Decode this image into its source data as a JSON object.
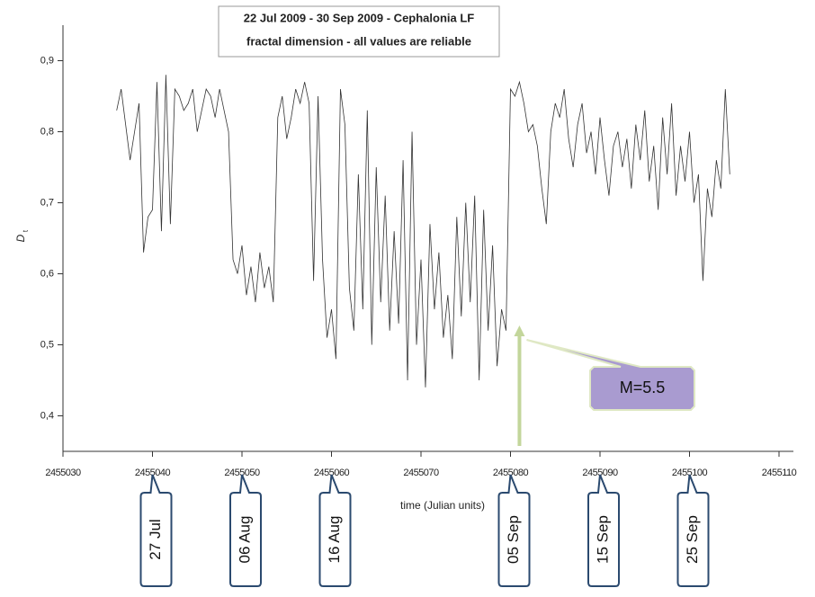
{
  "chart_data": {
    "type": "line",
    "title_lines": [
      "22 Jul 2009 - 30 Sep 2009 - Cephalonia LF",
      "fractal dimension - all values are reliable"
    ],
    "x_label": "time (Julian units)",
    "y_label": "D",
    "y_label_sub": "t",
    "xlim": [
      2455030,
      2455112
    ],
    "ylim": [
      0.35,
      0.95
    ],
    "xticks": [
      2455030,
      2455040,
      2455050,
      2455060,
      2455070,
      2455080,
      2455090,
      2455100,
      2455110
    ],
    "yticks": [
      {
        "value": 0.4,
        "label": "0,4"
      },
      {
        "value": 0.5,
        "label": "0,5"
      },
      {
        "value": 0.6,
        "label": "0,6"
      },
      {
        "value": 0.7,
        "label": "0,7"
      },
      {
        "value": 0.8,
        "label": "0,8"
      },
      {
        "value": 0.9,
        "label": "0,9"
      }
    ],
    "color": "#333333",
    "x": [
      2455036.0,
      2455036.5,
      2455037.0,
      2455037.5,
      2455038.0,
      2455038.5,
      2455039.0,
      2455039.5,
      2455040.0,
      2455040.5,
      2455041.0,
      2455041.5,
      2455042.0,
      2455042.5,
      2455043.0,
      2455043.5,
      2455044.0,
      2455044.5,
      2455045.0,
      2455045.5,
      2455046.0,
      2455046.5,
      2455047.0,
      2455047.5,
      2455048.0,
      2455048.5,
      2455049.0,
      2455049.5,
      2455050.0,
      2455050.5,
      2455051.0,
      2455051.5,
      2455052.0,
      2455052.5,
      2455053.0,
      2455053.5,
      2455054.0,
      2455054.5,
      2455055.0,
      2455055.5,
      2455056.0,
      2455056.5,
      2455057.0,
      2455057.5,
      2455058.0,
      2455058.5,
      2455059.0,
      2455059.5,
      2455060.0,
      2455060.5,
      2455061.0,
      2455061.5,
      2455062.0,
      2455062.5,
      2455063.0,
      2455063.5,
      2455064.0,
      2455064.5,
      2455065.0,
      2455065.5,
      2455066.0,
      2455066.5,
      2455067.0,
      2455067.5,
      2455068.0,
      2455068.5,
      2455069.0,
      2455069.5,
      2455070.0,
      2455070.5,
      2455071.0,
      2455071.5,
      2455072.0,
      2455072.5,
      2455073.0,
      2455073.5,
      2455074.0,
      2455074.5,
      2455075.0,
      2455075.5,
      2455076.0,
      2455076.5,
      2455077.0,
      2455077.5,
      2455078.0,
      2455078.5,
      2455079.0,
      2455079.5,
      2455080.0,
      2455080.5,
      2455081.0,
      2455081.5,
      2455082.0,
      2455082.5,
      2455083.0,
      2455083.5,
      2455084.0,
      2455084.5,
      2455085.0,
      2455085.5,
      2455086.0,
      2455086.5,
      2455087.0,
      2455087.5,
      2455088.0,
      2455088.5,
      2455089.0,
      2455089.5,
      2455090.0,
      2455090.5,
      2455091.0,
      2455091.5,
      2455092.0,
      2455092.5,
      2455093.0,
      2455093.5,
      2455094.0,
      2455094.5,
      2455095.0,
      2455095.5,
      2455096.0,
      2455096.5,
      2455097.0,
      2455097.5,
      2455098.0,
      2455098.5,
      2455099.0,
      2455099.5,
      2455100.0,
      2455100.5,
      2455101.0,
      2455101.5,
      2455102.0,
      2455102.5,
      2455103.0,
      2455103.5,
      2455104.0,
      2455104.5
    ],
    "values": [
      0.83,
      0.86,
      0.81,
      0.76,
      0.8,
      0.84,
      0.63,
      0.68,
      0.69,
      0.87,
      0.66,
      0.88,
      0.67,
      0.86,
      0.85,
      0.83,
      0.84,
      0.86,
      0.8,
      0.83,
      0.86,
      0.85,
      0.82,
      0.86,
      0.83,
      0.8,
      0.62,
      0.6,
      0.64,
      0.57,
      0.61,
      0.56,
      0.63,
      0.58,
      0.61,
      0.56,
      0.82,
      0.85,
      0.79,
      0.82,
      0.86,
      0.84,
      0.87,
      0.84,
      0.59,
      0.85,
      0.62,
      0.51,
      0.55,
      0.48,
      0.86,
      0.81,
      0.58,
      0.52,
      0.74,
      0.55,
      0.83,
      0.5,
      0.75,
      0.56,
      0.71,
      0.52,
      0.66,
      0.53,
      0.76,
      0.45,
      0.8,
      0.5,
      0.62,
      0.44,
      0.67,
      0.55,
      0.63,
      0.51,
      0.57,
      0.48,
      0.68,
      0.54,
      0.7,
      0.56,
      0.71,
      0.45,
      0.69,
      0.52,
      0.64,
      0.47,
      0.55,
      0.52,
      0.86,
      0.85,
      0.87,
      0.84,
      0.8,
      0.81,
      0.78,
      0.72,
      0.67,
      0.8,
      0.84,
      0.82,
      0.86,
      0.79,
      0.75,
      0.81,
      0.84,
      0.77,
      0.8,
      0.74,
      0.82,
      0.76,
      0.71,
      0.78,
      0.8,
      0.75,
      0.79,
      0.72,
      0.81,
      0.76,
      0.83,
      0.73,
      0.78,
      0.69,
      0.82,
      0.74,
      0.84,
      0.71,
      0.78,
      0.73,
      0.8,
      0.7,
      0.74,
      0.59,
      0.72,
      0.68,
      0.76,
      0.72,
      0.86,
      0.74
    ],
    "date_labels": [
      {
        "text": "27 Jul",
        "x": 2455040
      },
      {
        "text": "06 Aug",
        "x": 2455050
      },
      {
        "text": "16 Aug",
        "x": 2455060
      },
      {
        "text": "05 Sep",
        "x": 2455080
      },
      {
        "text": "15 Sep",
        "x": 2455090
      },
      {
        "text": "25 Sep",
        "x": 2455100
      }
    ],
    "event": {
      "text": "M=5.5",
      "x": 2455081
    }
  }
}
